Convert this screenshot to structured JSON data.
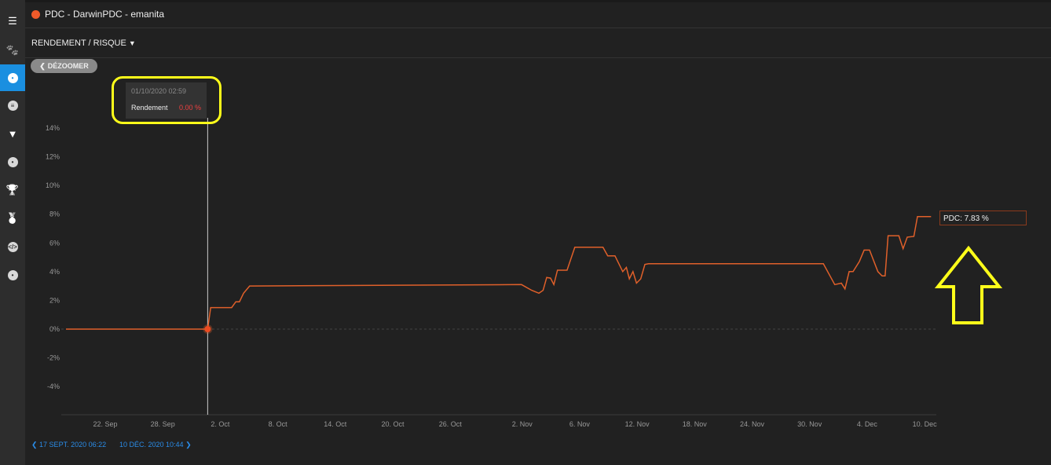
{
  "window": {
    "title": "PDC - DarwinPDC - emanita",
    "title_dot_color": "#ee5a2a"
  },
  "sidebar": {
    "items": [
      {
        "icon": "dashboard-icon"
      },
      {
        "icon": "paw-icon"
      },
      {
        "icon": "paw-hexagon-icon",
        "active": true
      },
      {
        "icon": "list-icon"
      },
      {
        "icon": "filter-icon"
      },
      {
        "icon": "speedometer-icon"
      },
      {
        "icon": "trophy-icon"
      },
      {
        "icon": "medal-icon"
      },
      {
        "icon": "code-icon"
      },
      {
        "icon": "paw-circle-icon"
      }
    ],
    "active_color": "#1a8fe0"
  },
  "toolbar": {
    "selector_label": "RENDEMENT / RISQUE",
    "dezoom_label": "DÉZOOMER"
  },
  "tooltip": {
    "date": "01/10/2020 02:59",
    "label": "Rendement",
    "value": "0.00 %"
  },
  "flag": {
    "text": "PDC: 7.83 %"
  },
  "range": {
    "start": "17 SEPT. 2020 06:22",
    "end": "10 DÉC. 2020 10:44"
  },
  "chart_data": {
    "type": "line",
    "title": "",
    "xlabel": "",
    "ylabel": "",
    "ylim": [
      -6,
      14
    ],
    "y_ticks": [
      "14%",
      "12%",
      "10%",
      "8%",
      "6%",
      "4%",
      "2%",
      "0%",
      "-2%",
      "-4%"
    ],
    "y_tick_values": [
      14,
      12,
      10,
      8,
      6,
      4,
      2,
      0,
      -2,
      -4
    ],
    "x_ticks": [
      "22. Sep",
      "28. Sep",
      "2. Oct",
      "8. Oct",
      "14. Oct",
      "20. Oct",
      "26. Oct",
      "2. Nov",
      "6. Nov",
      "12. Nov",
      "18. Nov",
      "24. Nov",
      "30. Nov",
      "4. Dec",
      "10. Dec"
    ],
    "x_tick_dates": [
      "2020-09-22",
      "2020-09-28",
      "2020-10-02",
      "2020-10-08",
      "2020-10-14",
      "2020-10-20",
      "2020-10-26",
      "2020-11-02",
      "2020-11-06",
      "2020-11-12",
      "2020-11-18",
      "2020-11-24",
      "2020-11-30",
      "2020-12-04",
      "2020-12-10"
    ],
    "x_axis": "trading days (weekends skipped)",
    "series": [
      {
        "name": "PDC",
        "color": "#e0602a",
        "points": [
          [
            "2020-09-17 06:22",
            0
          ],
          [
            "2020-10-01 02:59",
            0
          ],
          [
            "2020-10-01 08:00",
            1.5
          ],
          [
            "2020-10-02 19:00",
            1.5
          ],
          [
            "2020-10-05 02:00",
            1.9
          ],
          [
            "2020-10-05 08:00",
            1.9
          ],
          [
            "2020-10-05 15:00",
            2.5
          ],
          [
            "2020-10-06 01:00",
            3.0
          ],
          [
            "2020-10-30 23:00",
            3.1
          ],
          [
            "2020-11-02 16:00",
            2.7
          ],
          [
            "2020-11-03 04:00",
            2.5
          ],
          [
            "2020-11-03 11:00",
            2.7
          ],
          [
            "2020-11-03 17:00",
            3.6
          ],
          [
            "2020-11-03 23:30",
            3.55
          ],
          [
            "2020-11-04 05:00",
            3.1
          ],
          [
            "2020-11-04 11:00",
            4.1
          ],
          [
            "2020-11-05 03:00",
            4.1
          ],
          [
            "2020-11-05 16:00",
            5.7
          ],
          [
            "2020-11-09 15:00",
            5.7
          ],
          [
            "2020-11-09 23:00",
            5.1
          ],
          [
            "2020-11-10 11:00",
            5.1
          ],
          [
            "2020-11-11 00:00",
            4.0
          ],
          [
            "2020-11-11 06:00",
            4.3
          ],
          [
            "2020-11-11 11:00",
            3.5
          ],
          [
            "2020-11-11 17:00",
            4.0
          ],
          [
            "2020-11-11 23:00",
            3.2
          ],
          [
            "2020-11-12 06:00",
            3.5
          ],
          [
            "2020-11-12 13:00",
            4.5
          ],
          [
            "2020-11-12 19:00",
            4.55
          ],
          [
            "2020-11-30 23:00",
            4.55
          ],
          [
            "2020-12-01 18:00",
            3.1
          ],
          [
            "2020-12-02 05:00",
            3.2
          ],
          [
            "2020-12-02 11:00",
            2.8
          ],
          [
            "2020-12-02 18:00",
            4.0
          ],
          [
            "2020-12-03 00:30",
            4.0
          ],
          [
            "2020-12-03 11:00",
            4.7
          ],
          [
            "2020-12-03 19:00",
            5.5
          ],
          [
            "2020-12-04 04:00",
            5.5
          ],
          [
            "2020-12-04 18:00",
            4.0
          ],
          [
            "2020-12-07 01:00",
            3.7
          ],
          [
            "2020-12-07 06:00",
            3.7
          ],
          [
            "2020-12-07 11:00",
            6.5
          ],
          [
            "2020-12-08 05:00",
            6.5
          ],
          [
            "2020-12-08 12:00",
            5.6
          ],
          [
            "2020-12-08 19:00",
            6.4
          ],
          [
            "2020-12-09 06:00",
            6.45
          ],
          [
            "2020-12-09 12:00",
            7.83
          ],
          [
            "2020-12-10 10:44",
            7.83
          ]
        ]
      }
    ],
    "hover_point": [
      "2020-10-01 02:59",
      0
    ],
    "grid": false,
    "zero_line": "dashed"
  }
}
